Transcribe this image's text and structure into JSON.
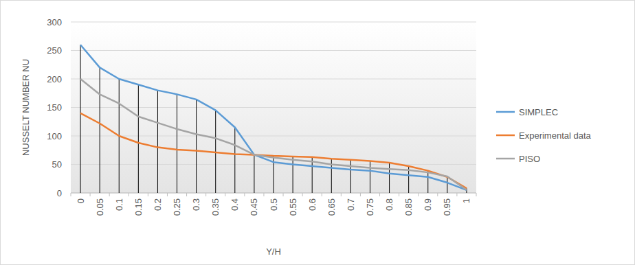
{
  "chart_data": {
    "type": "line",
    "x_label": "Y/H",
    "y_label": "NUSSELT NUMBER NU",
    "categories": [
      "0",
      "0.05",
      "0.1",
      "0.15",
      "0.2",
      "0.25",
      "0.3",
      "0.35",
      "0.4",
      "0.45",
      "0.5",
      "0.55",
      "0.6",
      "0.65",
      "0.7",
      "0.75",
      "0.8",
      "0.85",
      "0.9",
      "0.95",
      "1"
    ],
    "series": [
      {
        "name": "SIMPLEC",
        "color": "#5b9bd5",
        "values": [
          260,
          220,
          200,
          190,
          180,
          173,
          164,
          145,
          115,
          67,
          54,
          50,
          47,
          44,
          41,
          39,
          34,
          31,
          28,
          18,
          5
        ]
      },
      {
        "name": "Experimental data",
        "color": "#ed7d31",
        "values": [
          140,
          122,
          100,
          88,
          80,
          76,
          74,
          71,
          68,
          67,
          65,
          64,
          63,
          60,
          58,
          56,
          53,
          47,
          39,
          28,
          8
        ]
      },
      {
        "name": "PISO",
        "color": "#a5a5a5",
        "values": [
          200,
          173,
          157,
          134,
          123,
          112,
          103,
          96,
          84,
          67,
          62,
          58,
          55,
          50,
          47,
          44,
          42,
          40,
          36,
          29,
          5
        ]
      }
    ],
    "ylim": [
      0,
      300
    ],
    "yticks": [
      0,
      50,
      100,
      150,
      200,
      250,
      300
    ],
    "grid": true,
    "legend": "right"
  }
}
